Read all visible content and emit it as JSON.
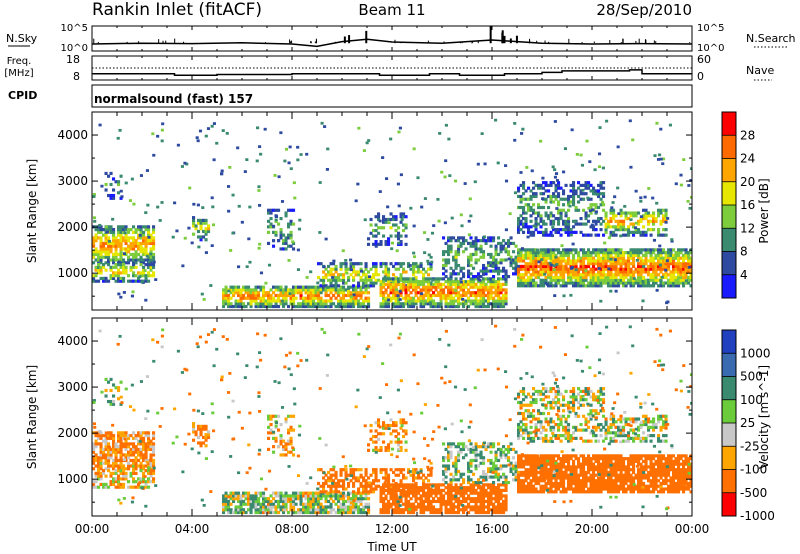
{
  "header": {
    "station": "Rankin Inlet (fitACF)",
    "beam": "Beam 11",
    "date": "28/Sep/2010"
  },
  "nsky_panel": {
    "left_label": "N.Sky",
    "right_label": "N.Search",
    "left_ticks": [
      "10^5",
      "10^0"
    ],
    "right_ticks": [
      "10^5",
      "10^0"
    ]
  },
  "freq_panel": {
    "left_label_1": "Freq.",
    "left_label_2": "[MHz]",
    "right_label": "Nave",
    "left_ticks": [
      "18",
      "8"
    ],
    "right_ticks": [
      "60",
      "0"
    ]
  },
  "cpid": {
    "label": "CPID",
    "value": "normalsound (fast) 157"
  },
  "x_axis": {
    "label": "Time UT",
    "ticks": [
      "00:00",
      "04:00",
      "08:00",
      "12:00",
      "16:00",
      "20:00",
      "00:00"
    ]
  },
  "power_colorbar": {
    "title": "Power [dB]",
    "ticks": [
      "28",
      "24",
      "20",
      "16",
      "12",
      "8",
      "4"
    ],
    "colors": [
      "#ff0000",
      "#ff6a00",
      "#ffa500",
      "#e6e600",
      "#7ccc3c",
      "#3a8a70",
      "#2e4aa0",
      "#1a1aff"
    ]
  },
  "velocity_colorbar": {
    "title": "Velocity [m s^-1]",
    "ticks": [
      "1000",
      "500",
      "100",
      "25",
      "-25",
      "-100",
      "-500",
      "-1000"
    ],
    "colors": [
      "#2040c0",
      "#3a6ab0",
      "#3a8a70",
      "#6acc3a",
      "#c8c8c8",
      "#ffa500",
      "#ff7000",
      "#ff0000"
    ]
  },
  "chart_data": [
    {
      "type": "line",
      "name": "N.Sky / N.Search",
      "x": [
        0,
        2,
        4,
        6,
        8,
        9,
        10,
        11,
        12,
        14,
        16,
        18,
        20,
        22,
        24
      ],
      "values": [
        1.0,
        1.2,
        1.1,
        1.3,
        1.0,
        0.4,
        1.6,
        2.2,
        1.5,
        1.2,
        2.0,
        1.2,
        1.0,
        1.1,
        1.0
      ],
      "ylim": [
        0,
        5
      ]
    },
    {
      "type": "line",
      "name": "Freq",
      "x": [
        0,
        3.3,
        3.3,
        5,
        5,
        8,
        8,
        11.5,
        11.5,
        13.5,
        13.5,
        14.7,
        14.7,
        16.5,
        16.5,
        18,
        18,
        18.8,
        18.8,
        21.5,
        21.5,
        22,
        22,
        24
      ],
      "values": [
        10.6,
        10.6,
        10.0,
        10.0,
        10.3,
        10.3,
        10.6,
        10.6,
        10.0,
        10.0,
        10.6,
        10.6,
        10.0,
        10.0,
        10.6,
        10.6,
        11.2,
        11.2,
        11.8,
        11.8,
        12.2,
        12.2,
        10.6,
        10.6
      ],
      "ylim": [
        8,
        18
      ]
    },
    {
      "type": "heatmap",
      "name": "Power",
      "xlabel": "Time UT",
      "ylabel": "Slant Range [km]",
      "xlim": [
        0,
        24
      ],
      "ylim": [
        200,
        4500
      ],
      "yticks": [
        1000,
        2000,
        3000,
        4000
      ],
      "clim": [
        0,
        30
      ]
    },
    {
      "type": "heatmap",
      "name": "Velocity",
      "xlabel": "Time UT",
      "ylabel": "Slant Range [km]",
      "xlim": [
        0,
        24
      ],
      "ylim": [
        200,
        4500
      ],
      "yticks": [
        1000,
        2000,
        3000,
        4000
      ],
      "clim": [
        -1000,
        1000
      ]
    }
  ]
}
